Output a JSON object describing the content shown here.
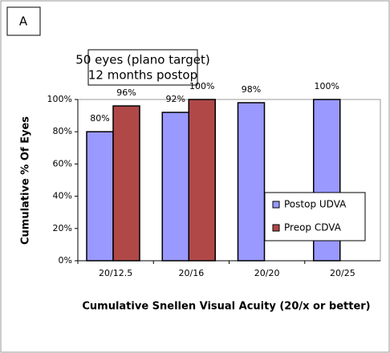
{
  "chart_data": {
    "type": "bar",
    "panel_label": "A",
    "annotations": [
      "50 eyes (plano target)",
      "12 months postop"
    ],
    "xlabel": "Cumulative Snellen Visual Acuity (20/x or better)",
    "ylabel": "Cumulative % Of Eyes",
    "categories": [
      "20/12.5",
      "20/16",
      "20/20",
      "20/25"
    ],
    "series": [
      {
        "name": "Postop UDVA",
        "color": "#9999ff",
        "values": [
          80,
          92,
          98,
          100
        ],
        "value_labels": [
          "80%",
          "92%",
          "98%",
          "100%"
        ]
      },
      {
        "name": "Preop CDVA",
        "color": "#b04848",
        "values": [
          96,
          100,
          null,
          null
        ],
        "value_labels": [
          "96%",
          "100%",
          null,
          null
        ]
      }
    ],
    "ylim": [
      0,
      100
    ],
    "yticks": [
      {
        "value": 0,
        "label": "0%"
      },
      {
        "value": 20,
        "label": "20%"
      },
      {
        "value": 40,
        "label": "40%"
      },
      {
        "value": 60,
        "label": "60%"
      },
      {
        "value": 80,
        "label": "80%"
      },
      {
        "value": 100,
        "label": "100%"
      }
    ],
    "legend": "lower right"
  }
}
